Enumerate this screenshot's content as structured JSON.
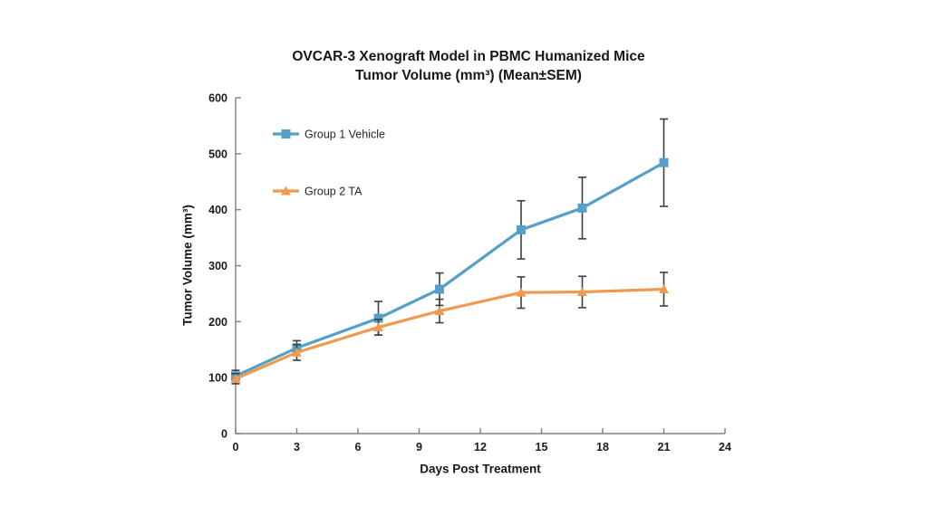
{
  "chart_data": {
    "type": "line",
    "title_line1": "OVCAR-3 Xenograft Model in PBMC Humanized Mice",
    "title_line2": "Tumor Volume (mm³) (Mean±SEM)",
    "xlabel": "Days Post Treatment",
    "ylabel": "Tumor Volume (mm³)",
    "x": [
      0,
      3,
      7,
      10,
      14,
      17,
      21
    ],
    "series": [
      {
        "name": "Group 1 Vehicle",
        "color": "#55a0c8",
        "marker": "square",
        "values": [
          103,
          153,
          206,
          258,
          364,
          403,
          484
        ],
        "sem": [
          10,
          13,
          30,
          29,
          52,
          55,
          78
        ]
      },
      {
        "name": "Group 2 TA",
        "color": "#ef9a4c",
        "marker": "triangle",
        "values": [
          98,
          145,
          190,
          219,
          252,
          253,
          258
        ],
        "sem": [
          9,
          14,
          14,
          21,
          28,
          28,
          30
        ]
      }
    ],
    "xlim": [
      0,
      24
    ],
    "ylim": [
      0,
      600
    ],
    "x_ticks": [
      0,
      3,
      6,
      9,
      12,
      15,
      18,
      21,
      24
    ],
    "y_ticks": [
      0,
      100,
      200,
      300,
      400,
      500,
      600
    ],
    "grid": false,
    "legend_position": "inside-top-left",
    "error_bar_color": "#3f3f3f",
    "axis_color": "#808080",
    "text_color": "#1a1a1a"
  }
}
